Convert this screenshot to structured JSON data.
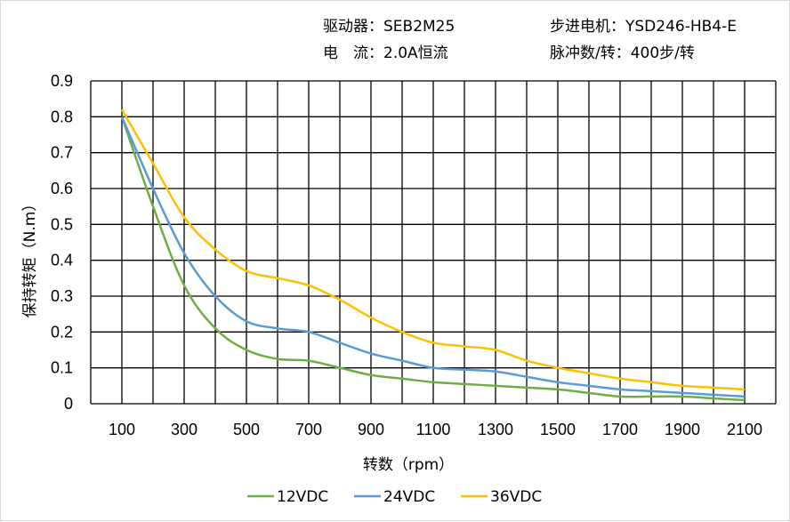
{
  "header": {
    "driver": "驱动器：SEB2M25",
    "motor": "步进电机：YSD246-HB4-E",
    "current": "电　流：2.0A恒流",
    "pulses": "脉冲数/转：400步/转"
  },
  "chart_data": {
    "type": "line",
    "xlabel": "转数（rpm）",
    "ylabel": "保持转矩（N.m）",
    "xlim": [
      0,
      2200
    ],
    "ylim": [
      0,
      0.9
    ],
    "grid": true,
    "legend_position": "bottom",
    "x_ticks": [
      "100",
      "300",
      "500",
      "700",
      "900",
      "1100",
      "1300",
      "1500",
      "1700",
      "1900",
      "2100"
    ],
    "y_ticks": [
      "0",
      "0.1",
      "0.2",
      "0.3",
      "0.4",
      "0.5",
      "0.6",
      "0.7",
      "0.8",
      "0.9"
    ],
    "x": [
      100,
      200,
      300,
      400,
      500,
      600,
      700,
      800,
      900,
      1000,
      1100,
      1200,
      1300,
      1400,
      1500,
      1600,
      1700,
      1800,
      1900,
      2000,
      2100
    ],
    "series": [
      {
        "name": "12VDC",
        "color": "#70ad47",
        "values": [
          0.8,
          0.55,
          0.33,
          0.21,
          0.15,
          0.125,
          0.12,
          0.1,
          0.08,
          0.07,
          0.06,
          0.055,
          0.05,
          0.045,
          0.04,
          0.03,
          0.02,
          0.02,
          0.02,
          0.015,
          0.01
        ]
      },
      {
        "name": "24VDC",
        "color": "#5b9bd5",
        "values": [
          0.8,
          0.6,
          0.42,
          0.3,
          0.23,
          0.21,
          0.2,
          0.17,
          0.14,
          0.12,
          0.1,
          0.095,
          0.09,
          0.075,
          0.06,
          0.05,
          0.04,
          0.035,
          0.03,
          0.025,
          0.02
        ]
      },
      {
        "name": "36VDC",
        "color": "#ffc000",
        "values": [
          0.82,
          0.67,
          0.52,
          0.43,
          0.37,
          0.35,
          0.33,
          0.29,
          0.24,
          0.2,
          0.17,
          0.16,
          0.15,
          0.12,
          0.1,
          0.085,
          0.07,
          0.06,
          0.05,
          0.045,
          0.04
        ]
      }
    ]
  }
}
